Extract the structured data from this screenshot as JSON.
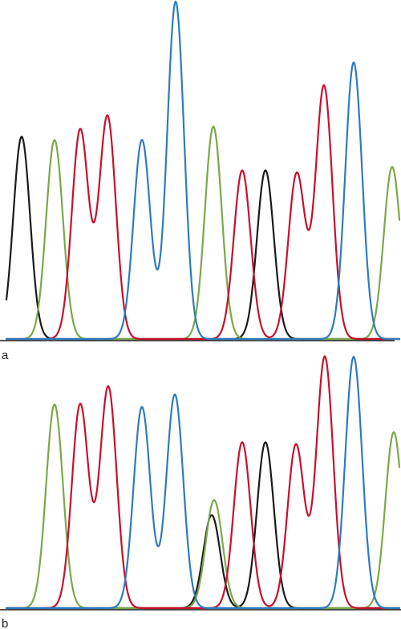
{
  "colors": {
    "black": "#1a1a1a",
    "green": "#7ba84a",
    "red": "#c8102e",
    "blue": "#2d7bbf"
  },
  "chart_data": [
    {
      "type": "line",
      "panel_label": "a",
      "title": "",
      "xlabel": "",
      "ylabel": "",
      "grid": false,
      "ylim": [
        0,
        100
      ],
      "series": [
        {
          "color": "black",
          "peaks": [
            {
              "x": 27,
              "h": 60
            },
            {
              "x": 331,
              "h": 50
            }
          ]
        },
        {
          "color": "green",
          "peaks": [
            {
              "x": 68,
              "h": 59
            },
            {
              "x": 266,
              "h": 63
            },
            {
              "x": 489,
              "h": 51
            }
          ]
        },
        {
          "color": "red",
          "peaks": [
            {
              "x": 100,
              "h": 62
            },
            {
              "x": 134,
              "h": 66
            },
            {
              "x": 302,
              "h": 50
            },
            {
              "x": 370,
              "h": 49
            },
            {
              "x": 404,
              "h": 75
            }
          ]
        },
        {
          "color": "blue",
          "peaks": [
            {
              "x": 177,
              "h": 59
            },
            {
              "x": 219,
              "h": 100
            },
            {
              "x": 441,
              "h": 82
            }
          ]
        }
      ]
    },
    {
      "type": "line",
      "panel_label": "b",
      "title": "",
      "xlabel": "",
      "ylabel": "",
      "grid": false,
      "ylim": [
        0,
        100
      ],
      "series": [
        {
          "color": "black",
          "peaks": [
            {
              "x": 264,
              "h": 37
            },
            {
              "x": 331,
              "h": 66
            }
          ]
        },
        {
          "color": "green",
          "peaks": [
            {
              "x": 68,
              "h": 81
            },
            {
              "x": 267,
              "h": 43
            },
            {
              "x": 491,
              "h": 70
            }
          ]
        },
        {
          "color": "red",
          "peaks": [
            {
              "x": 100,
              "h": 81
            },
            {
              "x": 135,
              "h": 88
            },
            {
              "x": 302,
              "h": 66
            },
            {
              "x": 369,
              "h": 65
            },
            {
              "x": 405,
              "h": 100
            }
          ]
        },
        {
          "color": "blue",
          "peaks": [
            {
              "x": 177,
              "h": 80
            },
            {
              "x": 218,
              "h": 85
            },
            {
              "x": 441,
              "h": 100
            }
          ]
        }
      ]
    }
  ]
}
